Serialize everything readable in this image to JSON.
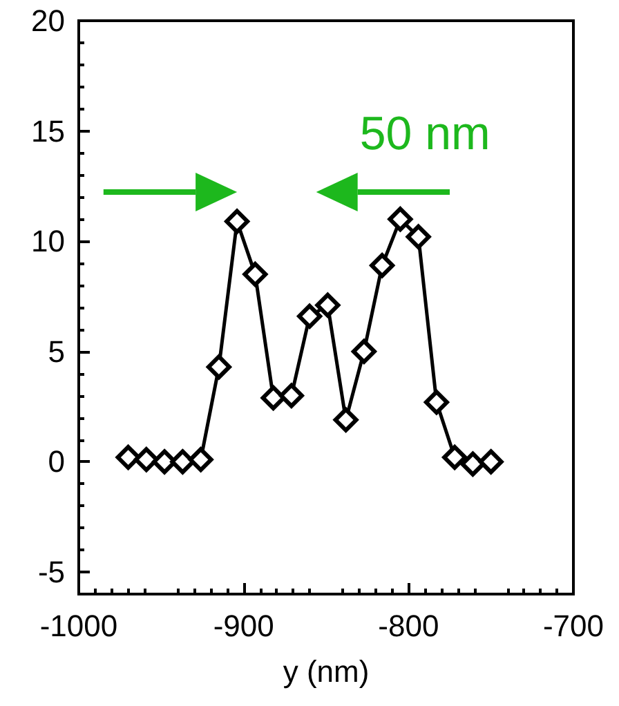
{
  "chart_data": {
    "type": "line",
    "xlabel": "y (nm)",
    "x": [
      -970,
      -959,
      -948,
      -937,
      -926,
      -915,
      -904,
      -893,
      -882,
      -871,
      -860,
      -849,
      -838,
      -827,
      -816,
      -805,
      -794,
      -783,
      -772,
      -761,
      -750
    ],
    "series": [
      {
        "color": "#000000",
        "values": [
          0.2,
          0.1,
          0,
          0,
          0.1,
          4.3,
          10.9,
          8.5,
          2.9,
          3.0,
          6.6,
          7.1,
          1.9,
          5.0,
          8.9,
          11.0,
          10.2,
          2.7,
          0.2,
          -0.1,
          0
        ]
      }
    ],
    "xlim": [
      -1000,
      -700
    ],
    "xticks": [
      -1000,
      -900,
      -800,
      -700
    ],
    "ylim": [
      -6,
      20
    ],
    "yticks": [
      -5,
      0,
      5,
      10,
      15,
      20
    ],
    "marker": "diamond",
    "line_style": "solid",
    "annotations": [
      "50 nm"
    ]
  }
}
